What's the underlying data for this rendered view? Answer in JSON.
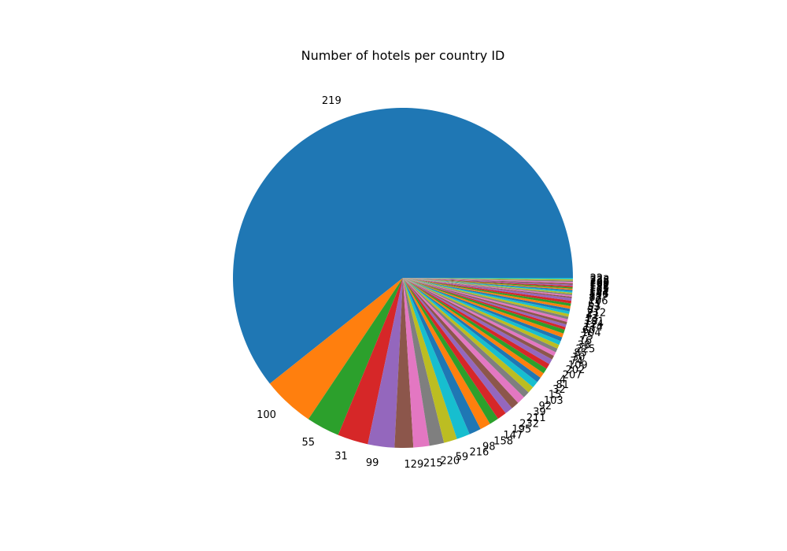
{
  "chart_data": {
    "type": "pie",
    "title": "Number of hotels per country ID",
    "start_angle_deg": 0,
    "direction": "counterclockwise",
    "slices": [
      {
        "label": "219",
        "value": 480,
        "color": "#1f77b4"
      },
      {
        "label": "100",
        "value": 39,
        "color": "#ff7f0e"
      },
      {
        "label": "55",
        "value": 25,
        "color": "#2ca02c"
      },
      {
        "label": "31",
        "value": 23,
        "color": "#d62728"
      },
      {
        "label": "99",
        "value": 20,
        "color": "#9467bd"
      },
      {
        "label": "129",
        "value": 14,
        "color": "#8c564b"
      },
      {
        "label": "215",
        "value": 12,
        "color": "#e377c2"
      },
      {
        "label": "220",
        "value": 11,
        "color": "#7f7f7f"
      },
      {
        "label": "59",
        "value": 10,
        "color": "#bcbd22"
      },
      {
        "label": "216",
        "value": 10,
        "color": "#17becf"
      },
      {
        "label": "98",
        "value": 9,
        "color": "#1f77b4"
      },
      {
        "label": "158",
        "value": 8,
        "color": "#ff7f0e"
      },
      {
        "label": "147",
        "value": 7,
        "color": "#2ca02c"
      },
      {
        "label": "195",
        "value": 7,
        "color": "#d62728"
      },
      {
        "label": "232",
        "value": 6,
        "color": "#9467bd"
      },
      {
        "label": "211",
        "value": 6,
        "color": "#8c564b"
      },
      {
        "label": "39",
        "value": 6,
        "color": "#e377c2"
      },
      {
        "label": "92",
        "value": 5,
        "color": "#7f7f7f"
      },
      {
        "label": "103",
        "value": 5,
        "color": "#bcbd22"
      },
      {
        "label": "15",
        "value": 5,
        "color": "#17becf"
      },
      {
        "label": "32",
        "value": 4,
        "color": "#1f77b4"
      },
      {
        "label": "81",
        "value": 4,
        "color": "#ff7f0e"
      },
      {
        "label": "4",
        "value": 4,
        "color": "#2ca02c"
      },
      {
        "label": "207",
        "value": 4,
        "color": "#d62728"
      },
      {
        "label": "202",
        "value": 4,
        "color": "#9467bd"
      },
      {
        "label": "109",
        "value": 3,
        "color": "#8c564b"
      },
      {
        "label": "74",
        "value": 3,
        "color": "#e377c2"
      },
      {
        "label": "30",
        "value": 3,
        "color": "#7f7f7f"
      },
      {
        "label": "85",
        "value": 3,
        "color": "#bcbd22"
      },
      {
        "label": "225",
        "value": 3,
        "color": "#17becf"
      },
      {
        "label": "38",
        "value": 3,
        "color": "#1f77b4"
      },
      {
        "label": "16",
        "value": 3,
        "color": "#ff7f0e"
      },
      {
        "label": "75",
        "value": 3,
        "color": "#2ca02c"
      },
      {
        "label": "104",
        "value": 2,
        "color": "#d62728"
      },
      {
        "label": "60",
        "value": 2,
        "color": "#9467bd"
      },
      {
        "label": "174",
        "value": 2,
        "color": "#8c564b"
      },
      {
        "label": "124",
        "value": 2,
        "color": "#e377c2"
      },
      {
        "label": "181",
        "value": 2,
        "color": "#7f7f7f"
      },
      {
        "label": "13",
        "value": 2,
        "color": "#bcbd22"
      },
      {
        "label": "42",
        "value": 2,
        "color": "#17becf"
      },
      {
        "label": "212",
        "value": 2,
        "color": "#1f77b4"
      },
      {
        "label": "87",
        "value": 2,
        "color": "#ff7f0e"
      },
      {
        "label": "53",
        "value": 2,
        "color": "#2ca02c"
      },
      {
        "label": "61",
        "value": 2,
        "color": "#d62728"
      },
      {
        "label": "106",
        "value": 2,
        "color": "#9467bd"
      },
      {
        "label": "72",
        "value": 1,
        "color": "#8c564b"
      },
      {
        "label": "83",
        "value": 1,
        "color": "#e377c2"
      },
      {
        "label": "117",
        "value": 1,
        "color": "#7f7f7f"
      },
      {
        "label": "136",
        "value": 1,
        "color": "#bcbd22"
      },
      {
        "label": "144",
        "value": 1,
        "color": "#17becf"
      },
      {
        "label": "151",
        "value": 1,
        "color": "#1f77b4"
      },
      {
        "label": "165",
        "value": 1,
        "color": "#ff7f0e"
      },
      {
        "label": "177",
        "value": 1,
        "color": "#2ca02c"
      },
      {
        "label": "188",
        "value": 1,
        "color": "#d62728"
      },
      {
        "label": "191",
        "value": 1,
        "color": "#9467bd"
      },
      {
        "label": "199",
        "value": 1,
        "color": "#8c564b"
      },
      {
        "label": "205",
        "value": 1,
        "color": "#e377c2"
      },
      {
        "label": "228",
        "value": 1,
        "color": "#7f7f7f"
      },
      {
        "label": "233",
        "value": 1,
        "color": "#bcbd22"
      },
      {
        "label": "22",
        "value": 1,
        "color": "#17becf"
      }
    ]
  }
}
